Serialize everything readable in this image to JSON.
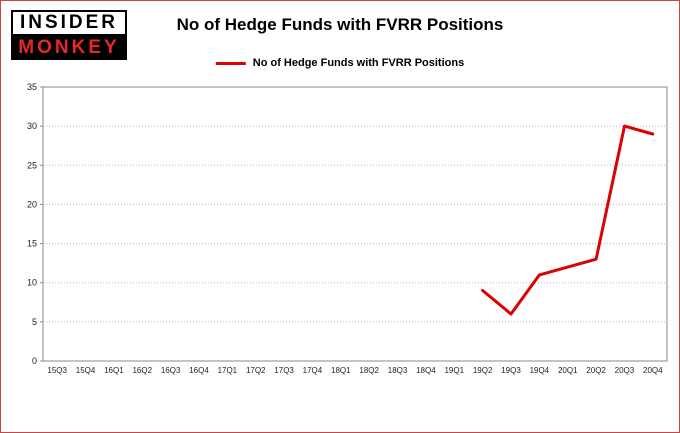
{
  "page": {
    "background": "#ffffff",
    "border_color": "#cc4444"
  },
  "logo": {
    "line1": "INSIDER",
    "line2": "MONKEY",
    "monkey_color": "#e8262a"
  },
  "header": {
    "title": "No of Hedge Funds with FVRR Positions"
  },
  "legend": {
    "label": "No of Hedge Funds with FVRR Positions",
    "line_color": "#dd0000"
  },
  "chart_data": {
    "type": "line",
    "title": "No of Hedge Funds with FVRR Positions",
    "categories": [
      "15Q3",
      "15Q4",
      "16Q1",
      "16Q2",
      "16Q3",
      "16Q4",
      "17Q1",
      "17Q2",
      "17Q3",
      "17Q4",
      "18Q1",
      "18Q2",
      "18Q3",
      "18Q4",
      "19Q1",
      "19Q2",
      "19Q3",
      "19Q4",
      "20Q1",
      "20Q2",
      "20Q3",
      "20Q4"
    ],
    "series": [
      {
        "name": "No of Hedge Funds with FVRR Positions",
        "color": "#dd0000",
        "values": [
          null,
          null,
          null,
          null,
          null,
          null,
          null,
          null,
          null,
          null,
          null,
          null,
          null,
          null,
          null,
          9,
          6,
          11,
          12,
          13,
          30,
          29
        ]
      }
    ],
    "xlabel": "",
    "ylabel": "",
    "ylim": [
      0,
      35
    ],
    "yticks": [
      0,
      5,
      10,
      15,
      20,
      25,
      30,
      35
    ],
    "grid": true,
    "grid_color": "#b5b5b5",
    "plot_border_color": "#8a8a8a",
    "legend_position": "top"
  }
}
